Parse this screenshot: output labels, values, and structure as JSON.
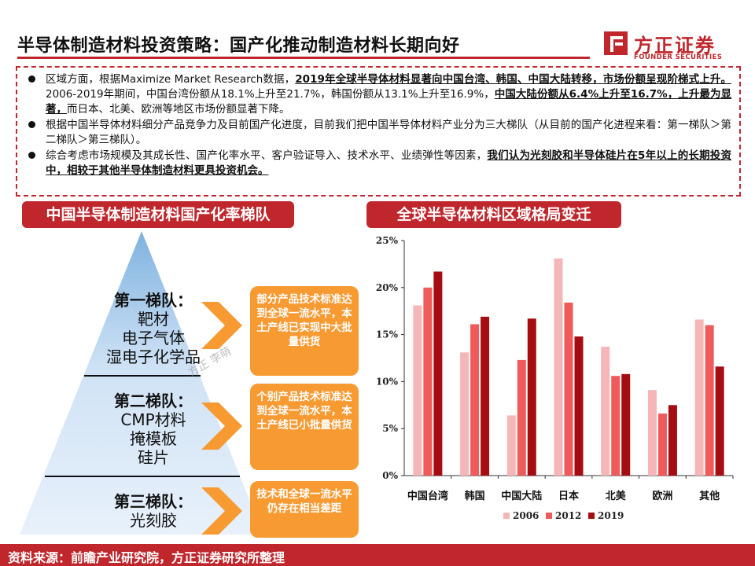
{
  "header": {
    "title": "半导体制造材料投资策略：国产化推动制造材料长期向好",
    "logo_cn": "方正证券",
    "logo_en": "FOUNDER SECURITIES"
  },
  "summary": {
    "b1": {
      "t1": "区域方面，根据Maximize Market Research数据，",
      "bold": "2019年全球半导体材料显著向中国台湾、韩国、中国大陆转移，市场份额呈现阶梯式上升。",
      "t2": "2006-2019年期间，中国台湾份额从18.1%上升至21.7%，韩国份额从13.1%上升至16.9%，",
      "bold2": "中国大陆份额从6.4%上升至16.7%，上升最为显著，",
      "t3": "而日本、北美、欧洲等地区市场份额显著下降。"
    },
    "b2": "根据中国半导体材料细分产品竞争力及目前国产化进度，目前我们把中国半导体材料产业分为三大梯队（从目前的国产化进程来看：第一梯队＞第二梯队＞第三梯队）。",
    "b3": {
      "t1": "综合考虑市场规模及其成长性、国产化率水平、客户验证导入、技术水平、业绩弹性等因素，",
      "bold": "我们认为光刻胶和半导体硅片在5年以上的长期投资中，相较于其他半导体制造材料更具投资机会。"
    }
  },
  "left_panel": {
    "title": "中国半导体制造材料国产化率梯队",
    "tier1": {
      "head": "第一梯队：",
      "items": [
        "靶材",
        "电子气体",
        "湿电子化学品"
      ],
      "note": "部分产品技术标准达到全球一流水平，本土产线已实现中大批量供货"
    },
    "tier2": {
      "head": "第二梯队：",
      "items": [
        "CMP材料",
        "掩模板",
        "硅片"
      ],
      "note": "个别产品技术标准达到全球一流水平，本土产线已小批量供货"
    },
    "tier3": {
      "head": "第三梯队：",
      "items": [
        "光刻胶"
      ],
      "note": "技术和全球一流水平仍存在相当差距"
    },
    "watermark": "方正 李萌"
  },
  "right_panel": {
    "title": "全球半导体材料区域格局变迁"
  },
  "chart_data": {
    "type": "bar",
    "categories": [
      "中国台湾",
      "韩国",
      "中国大陆",
      "日本",
      "北美",
      "欧洲",
      "其他"
    ],
    "series": [
      {
        "name": "2006",
        "color": "#f4b6b6",
        "values": [
          18.1,
          13.1,
          6.4,
          23.1,
          13.7,
          9.1,
          16.6
        ]
      },
      {
        "name": "2012",
        "color": "#ef5a5a",
        "values": [
          20.0,
          16.1,
          12.3,
          18.4,
          10.6,
          6.6,
          16.0
        ]
      },
      {
        "name": "2019",
        "color": "#a50d12",
        "values": [
          21.7,
          16.9,
          16.7,
          14.8,
          10.8,
          7.5,
          11.6
        ]
      }
    ],
    "y_ticks": [
      "0%",
      "5%",
      "10%",
      "15%",
      "20%",
      "25%"
    ],
    "ylim": [
      0,
      25
    ],
    "legend_position": "bottom"
  },
  "footer": {
    "source": "资料来源：前瞻产业研究院，方正证券研究所整理"
  }
}
